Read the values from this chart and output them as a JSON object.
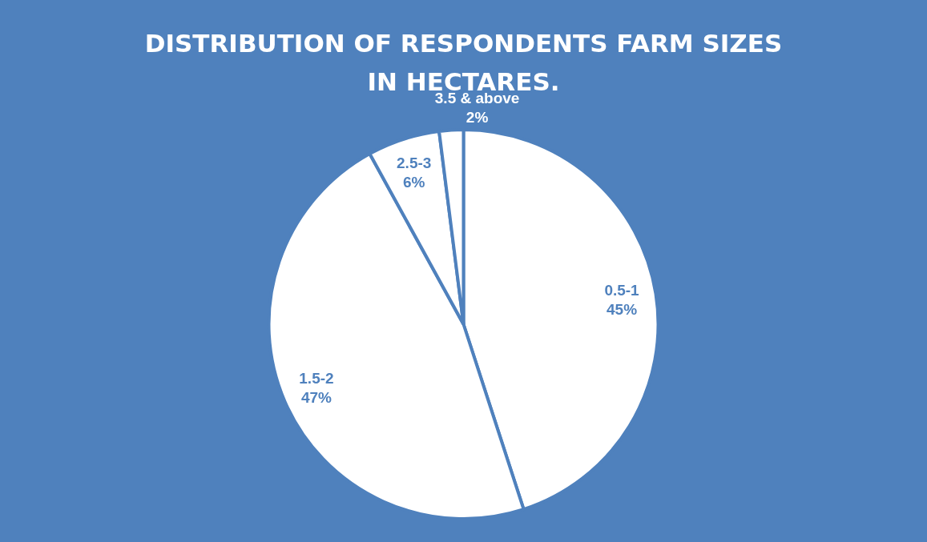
{
  "chart_data": {
    "type": "pie",
    "title": "DISTRIBUTION OF RESPONDENTS FARM SIZES IN HECTARES.",
    "categories": [
      "0.5-1",
      "1.5-2",
      "2.5-3",
      "3.5 & above"
    ],
    "values": [
      45,
      47,
      6,
      2
    ],
    "value_labels": [
      "45%",
      "47%",
      "6%",
      "2%"
    ],
    "colors": [
      "#ffffff",
      "#ffffff",
      "#ffffff",
      "#ffffff"
    ],
    "legend": false
  }
}
